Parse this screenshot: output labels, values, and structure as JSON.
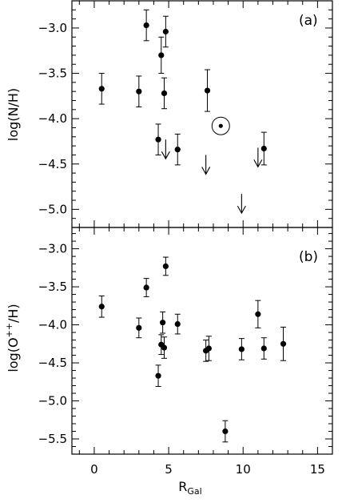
{
  "chart_data": [
    {
      "type": "scatter",
      "panel_label": "(a)",
      "ylabel_main": "log(N/H)",
      "xlabel_main": "R",
      "xlabel_sub": "Gal",
      "xlim": [
        -1.5,
        16
      ],
      "ylim": [
        -5.2,
        -2.7
      ],
      "yticks": [
        -3.0,
        -3.5,
        -4.0,
        -4.5,
        -5.0
      ],
      "ytick_labels": [
        "−3.0",
        "−3.5",
        "−4.0",
        "−4.5",
        "−5.0"
      ],
      "xticks": [
        0,
        5,
        10,
        15
      ],
      "points": [
        {
          "x": 0.5,
          "y": -3.67,
          "err": 0.17
        },
        {
          "x": 3.0,
          "y": -3.7,
          "err": 0.17
        },
        {
          "x": 3.5,
          "y": -2.97,
          "err": 0.17
        },
        {
          "x": 4.5,
          "y": -3.3,
          "err": 0.2
        },
        {
          "x": 4.8,
          "y": -3.04,
          "err": 0.17
        },
        {
          "x": 4.7,
          "y": -3.72,
          "err": 0.17
        },
        {
          "x": 4.3,
          "y": -4.23,
          "err": 0.17
        },
        {
          "x": 5.6,
          "y": -4.34,
          "err": 0.17
        },
        {
          "x": 7.6,
          "y": -3.69,
          "err": 0.23
        },
        {
          "x": 11.4,
          "y": -4.33,
          "err": 0.18
        }
      ],
      "upper_limits": [
        {
          "x": 4.8,
          "y": -4.23
        },
        {
          "x": 7.5,
          "y": -4.4
        },
        {
          "x": 9.9,
          "y": -4.83
        },
        {
          "x": 11.0,
          "y": -4.32
        }
      ],
      "sun": {
        "x": 8.5,
        "y": -4.08
      }
    },
    {
      "type": "scatter",
      "panel_label": "(b)",
      "ylabel_main": "log(O",
      "ylabel_sup": "++",
      "ylabel_end": "/H)",
      "xlim": [
        -1.5,
        16
      ],
      "ylim": [
        -5.7,
        -2.72
      ],
      "yticks": [
        -3.0,
        -3.5,
        -4.0,
        -4.5,
        -5.0,
        -5.5
      ],
      "ytick_labels": [
        "−3.0",
        "−3.5",
        "−4.0",
        "−4.5",
        "−5.0",
        "−5.5"
      ],
      "xticks": [
        0,
        5,
        10,
        15
      ],
      "xtick_labels": [
        "0",
        "5",
        "10",
        "15"
      ],
      "points": [
        {
          "x": 0.5,
          "y": -3.76,
          "err": 0.14
        },
        {
          "x": 3.0,
          "y": -4.04,
          "err": 0.13
        },
        {
          "x": 3.5,
          "y": -3.51,
          "err": 0.12
        },
        {
          "x": 4.3,
          "y": -4.67,
          "err": 0.14
        },
        {
          "x": 4.5,
          "y": -4.26,
          "err": 0.13
        },
        {
          "x": 4.6,
          "y": -3.97,
          "err": 0.14
        },
        {
          "x": 4.7,
          "y": -4.3,
          "err": 0.14
        },
        {
          "x": 4.8,
          "y": -3.23,
          "err": 0.12
        },
        {
          "x": 5.6,
          "y": -3.99,
          "err": 0.13
        },
        {
          "x": 7.5,
          "y": -4.34,
          "err": 0.14
        },
        {
          "x": 7.7,
          "y": -4.31,
          "err": 0.16
        },
        {
          "x": 8.8,
          "y": -5.4,
          "err": 0.14
        },
        {
          "x": 9.9,
          "y": -4.32,
          "err": 0.14
        },
        {
          "x": 11.0,
          "y": -3.86,
          "err": 0.18
        },
        {
          "x": 11.4,
          "y": -4.31,
          "err": 0.14
        },
        {
          "x": 12.7,
          "y": -4.25,
          "err": 0.22
        }
      ]
    }
  ]
}
